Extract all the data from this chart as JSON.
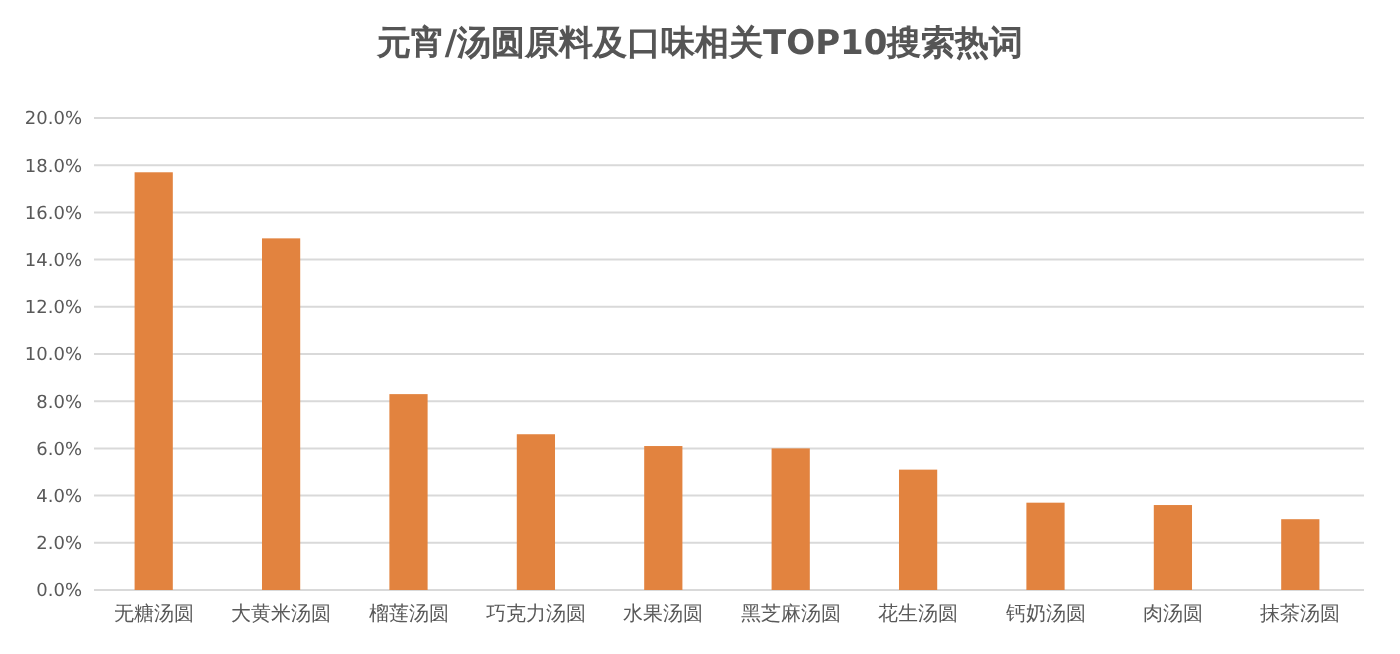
{
  "chart_data": {
    "type": "bar",
    "title": "元宵/汤圆原料及口味相关TOP10搜索热词",
    "categories": [
      "无糖汤圆",
      "大黄米汤圆",
      "榴莲汤圆",
      "巧克力汤圆",
      "水果汤圆",
      "黑芝麻汤圆",
      "花生汤圆",
      "钙奶汤圆",
      "肉汤圆",
      "抹茶汤圆"
    ],
    "values": [
      17.7,
      14.9,
      8.3,
      6.6,
      6.1,
      6.0,
      5.1,
      3.7,
      3.6,
      3.0
    ],
    "color": "#e2833f",
    "ylim": [
      0,
      20
    ],
    "yticks": [
      {
        "value": 0,
        "label": "0.0%"
      },
      {
        "value": 2,
        "label": "2.0%"
      },
      {
        "value": 4,
        "label": "4.0%"
      },
      {
        "value": 6,
        "label": "6.0%"
      },
      {
        "value": 8,
        "label": "8.0%"
      },
      {
        "value": 10,
        "label": "10.0%"
      },
      {
        "value": 12,
        "label": "12.0%"
      },
      {
        "value": 14,
        "label": "14.0%"
      },
      {
        "value": 16,
        "label": "16.0%"
      },
      {
        "value": 18,
        "label": "18.0%"
      },
      {
        "value": 20,
        "label": "20.0%"
      }
    ],
    "grid": true
  }
}
